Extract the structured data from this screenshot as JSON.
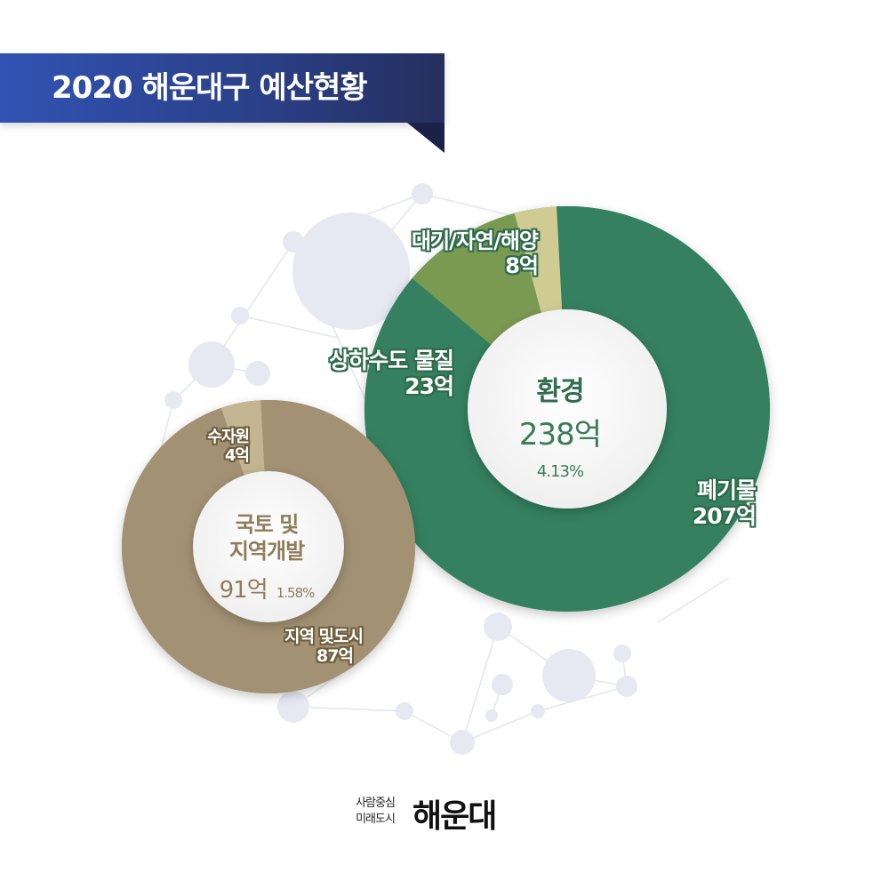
{
  "title": "2020 해운대구 예산현황",
  "colors": {
    "banner": "#2f4aa3",
    "env_waste": "#348060",
    "env_water": "#7a9a52",
    "env_air": "#cfcb92",
    "land_dev": "#a29173",
    "land_water": "#c2b591"
  },
  "chart_data": [
    {
      "type": "pie",
      "center_title": "환경",
      "center_amount": "238억",
      "center_percent": "4.13%",
      "slices": [
        {
          "label": "폐기물",
          "value": 207,
          "value_label": "207억"
        },
        {
          "label": "상하수도 물질",
          "value": 23,
          "value_label": "23억"
        },
        {
          "label": "대기/자연/해양",
          "value": 8,
          "value_label": "8억"
        }
      ]
    },
    {
      "type": "pie",
      "center_title_line1": "국토 및",
      "center_title_line2": "지역개발",
      "center_amount": "91억",
      "center_percent": "1.58%",
      "slices": [
        {
          "label": "지역 및도시",
          "value": 87,
          "value_label": "87억"
        },
        {
          "label": "수자원",
          "value": 4,
          "value_label": "4억"
        }
      ]
    }
  ],
  "logo": {
    "slogan_line1": "사람중심",
    "slogan_line2": "미래도시",
    "name": "해운대"
  }
}
